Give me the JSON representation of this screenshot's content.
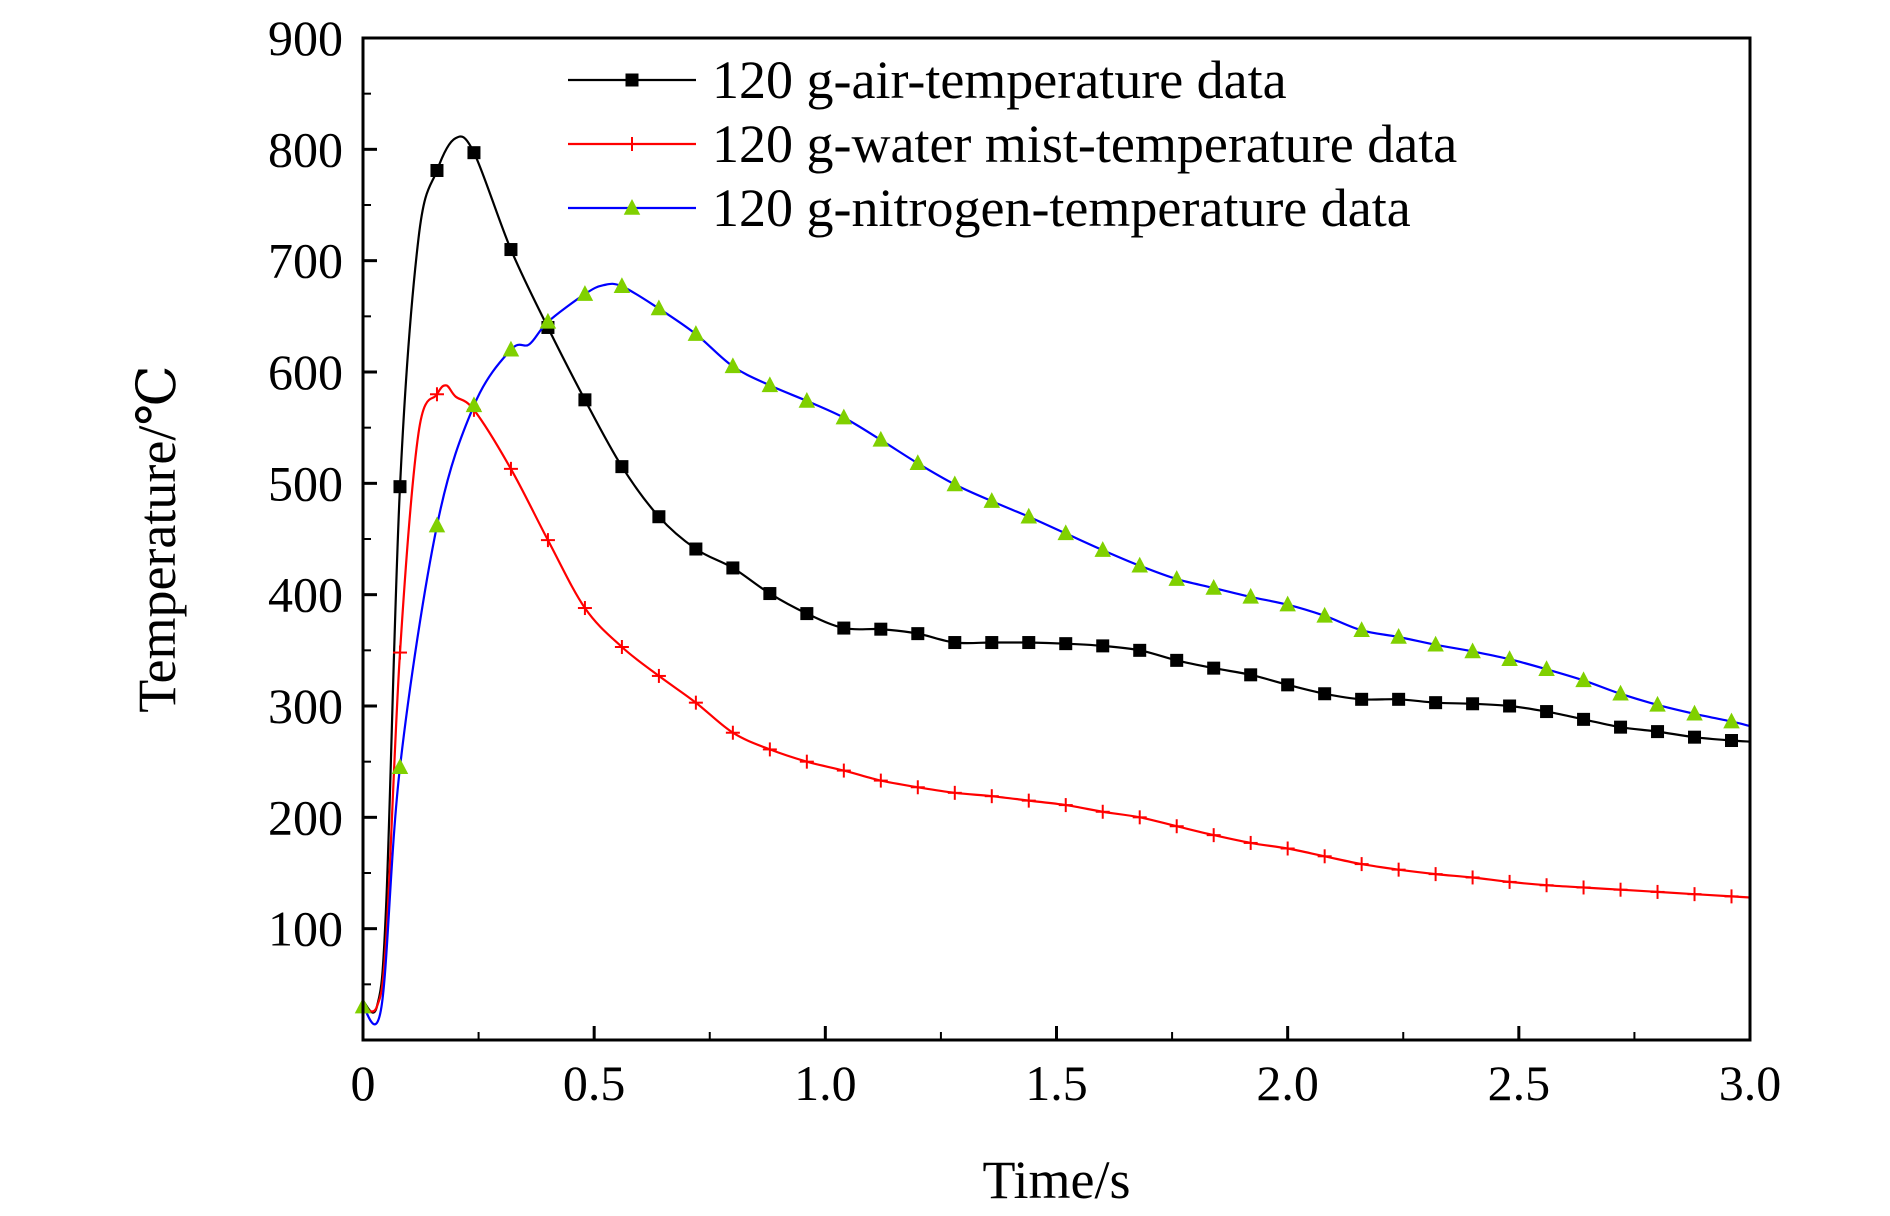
{
  "chart_data": {
    "type": "line",
    "title": "",
    "xlabel": "Time/s",
    "ylabel": "Temperature/℃",
    "xlim": [
      0,
      3.0
    ],
    "ylim": [
      0,
      900
    ],
    "x_ticks": [
      0,
      0.5,
      1.0,
      1.5,
      2.0,
      2.5,
      3.0
    ],
    "x_tick_labels": [
      "0",
      "0.5",
      "1.0",
      "1.5",
      "2.0",
      "2.5",
      "3.0"
    ],
    "y_ticks": [
      100,
      200,
      300,
      400,
      500,
      600,
      700,
      800,
      900
    ],
    "y_tick_labels": [
      "100",
      "200",
      "300",
      "400",
      "500",
      "600",
      "700",
      "800",
      "900"
    ],
    "grid": false,
    "legend_position": "top-right",
    "series": [
      {
        "name": "120 g-air-temperature data",
        "color": "#000000",
        "marker": "square",
        "x": [
          0,
          0.03,
          0.05,
          0.08,
          0.12,
          0.16,
          0.2,
          0.24,
          0.32,
          0.4,
          0.48,
          0.56,
          0.64,
          0.72,
          0.8,
          0.88,
          0.96,
          1.04,
          1.12,
          1.2,
          1.28,
          1.36,
          1.44,
          1.52,
          1.6,
          1.68,
          1.76,
          1.84,
          1.92,
          2.0,
          2.08,
          2.16,
          2.24,
          2.32,
          2.4,
          2.48,
          2.56,
          2.64,
          2.72,
          2.8,
          2.88,
          2.96,
          3.0
        ],
        "y": [
          35,
          30,
          120,
          497,
          720,
          781,
          810,
          797,
          710,
          640,
          575,
          515,
          470,
          441,
          424,
          401,
          383,
          370,
          369,
          365,
          357,
          357,
          357,
          356,
          354,
          350,
          341,
          334,
          328,
          319,
          311,
          306,
          306,
          303,
          302,
          300,
          295,
          288,
          281,
          277,
          272,
          269,
          268
        ],
        "marker_x": [
          0.08,
          0.16,
          0.24,
          0.32,
          0.4,
          0.48,
          0.56,
          0.64,
          0.72,
          0.8,
          0.88,
          0.96,
          1.04,
          1.12,
          1.2,
          1.28,
          1.36,
          1.44,
          1.52,
          1.6,
          1.68,
          1.76,
          1.84,
          1.92,
          2.0,
          2.08,
          2.16,
          2.24,
          2.32,
          2.4,
          2.48,
          2.56,
          2.64,
          2.72,
          2.8,
          2.88,
          2.96
        ]
      },
      {
        "name": "120 g-water mist-temperature data",
        "color": "#ff0000",
        "marker": "plus",
        "x": [
          0,
          0.03,
          0.05,
          0.08,
          0.12,
          0.16,
          0.18,
          0.2,
          0.24,
          0.32,
          0.4,
          0.48,
          0.56,
          0.64,
          0.72,
          0.8,
          0.88,
          0.96,
          1.04,
          1.12,
          1.2,
          1.28,
          1.36,
          1.44,
          1.52,
          1.6,
          1.68,
          1.76,
          1.84,
          1.92,
          2.0,
          2.08,
          2.16,
          2.24,
          2.32,
          2.4,
          2.48,
          2.56,
          2.64,
          2.72,
          2.8,
          2.88,
          2.96,
          3.0
        ],
        "y": [
          30,
          30,
          90,
          348,
          545,
          580,
          588,
          578,
          566,
          513,
          449,
          388,
          353,
          327,
          303,
          276,
          261,
          250,
          242,
          233,
          227,
          222,
          219,
          215,
          211,
          205,
          200,
          192,
          184,
          177,
          172,
          165,
          158,
          153,
          149,
          146,
          142,
          139,
          137,
          135,
          133,
          131,
          129,
          128
        ],
        "marker_x": [
          0.08,
          0.16,
          0.24,
          0.32,
          0.4,
          0.48,
          0.56,
          0.64,
          0.72,
          0.8,
          0.88,
          0.96,
          1.04,
          1.12,
          1.2,
          1.28,
          1.36,
          1.44,
          1.52,
          1.6,
          1.68,
          1.76,
          1.84,
          1.92,
          2.0,
          2.08,
          2.16,
          2.24,
          2.32,
          2.4,
          2.48,
          2.56,
          2.64,
          2.72,
          2.8,
          2.88,
          2.96
        ]
      },
      {
        "name": "120 g-nitrogen-temperature data",
        "color": "#0000ff",
        "marker": "triangle",
        "marker_color": "#80d000",
        "x": [
          0,
          0.04,
          0.08,
          0.16,
          0.24,
          0.32,
          0.36,
          0.4,
          0.48,
          0.52,
          0.56,
          0.64,
          0.72,
          0.8,
          0.88,
          0.96,
          1.04,
          1.12,
          1.2,
          1.28,
          1.36,
          1.44,
          1.52,
          1.6,
          1.68,
          1.76,
          1.84,
          1.92,
          2.0,
          2.08,
          2.16,
          2.24,
          2.32,
          2.4,
          2.48,
          2.56,
          2.64,
          2.72,
          2.8,
          2.88,
          2.96,
          3.0
        ],
        "y": [
          30,
          30,
          245,
          462,
          570,
          620,
          625,
          645,
          670,
          678,
          677,
          657,
          634,
          605,
          588,
          574,
          559,
          539,
          518,
          499,
          484,
          470,
          455,
          440,
          426,
          414,
          406,
          398,
          391,
          381,
          368,
          362,
          355,
          349,
          342,
          333,
          323,
          311,
          301,
          293,
          286,
          282
        ],
        "marker_x": [
          0,
          0.08,
          0.16,
          0.24,
          0.32,
          0.4,
          0.48,
          0.56,
          0.64,
          0.72,
          0.8,
          0.88,
          0.96,
          1.04,
          1.12,
          1.2,
          1.28,
          1.36,
          1.44,
          1.52,
          1.6,
          1.68,
          1.76,
          1.84,
          1.92,
          2.0,
          2.08,
          2.16,
          2.24,
          2.32,
          2.4,
          2.48,
          2.56,
          2.64,
          2.72,
          2.8,
          2.88,
          2.96
        ]
      }
    ]
  }
}
